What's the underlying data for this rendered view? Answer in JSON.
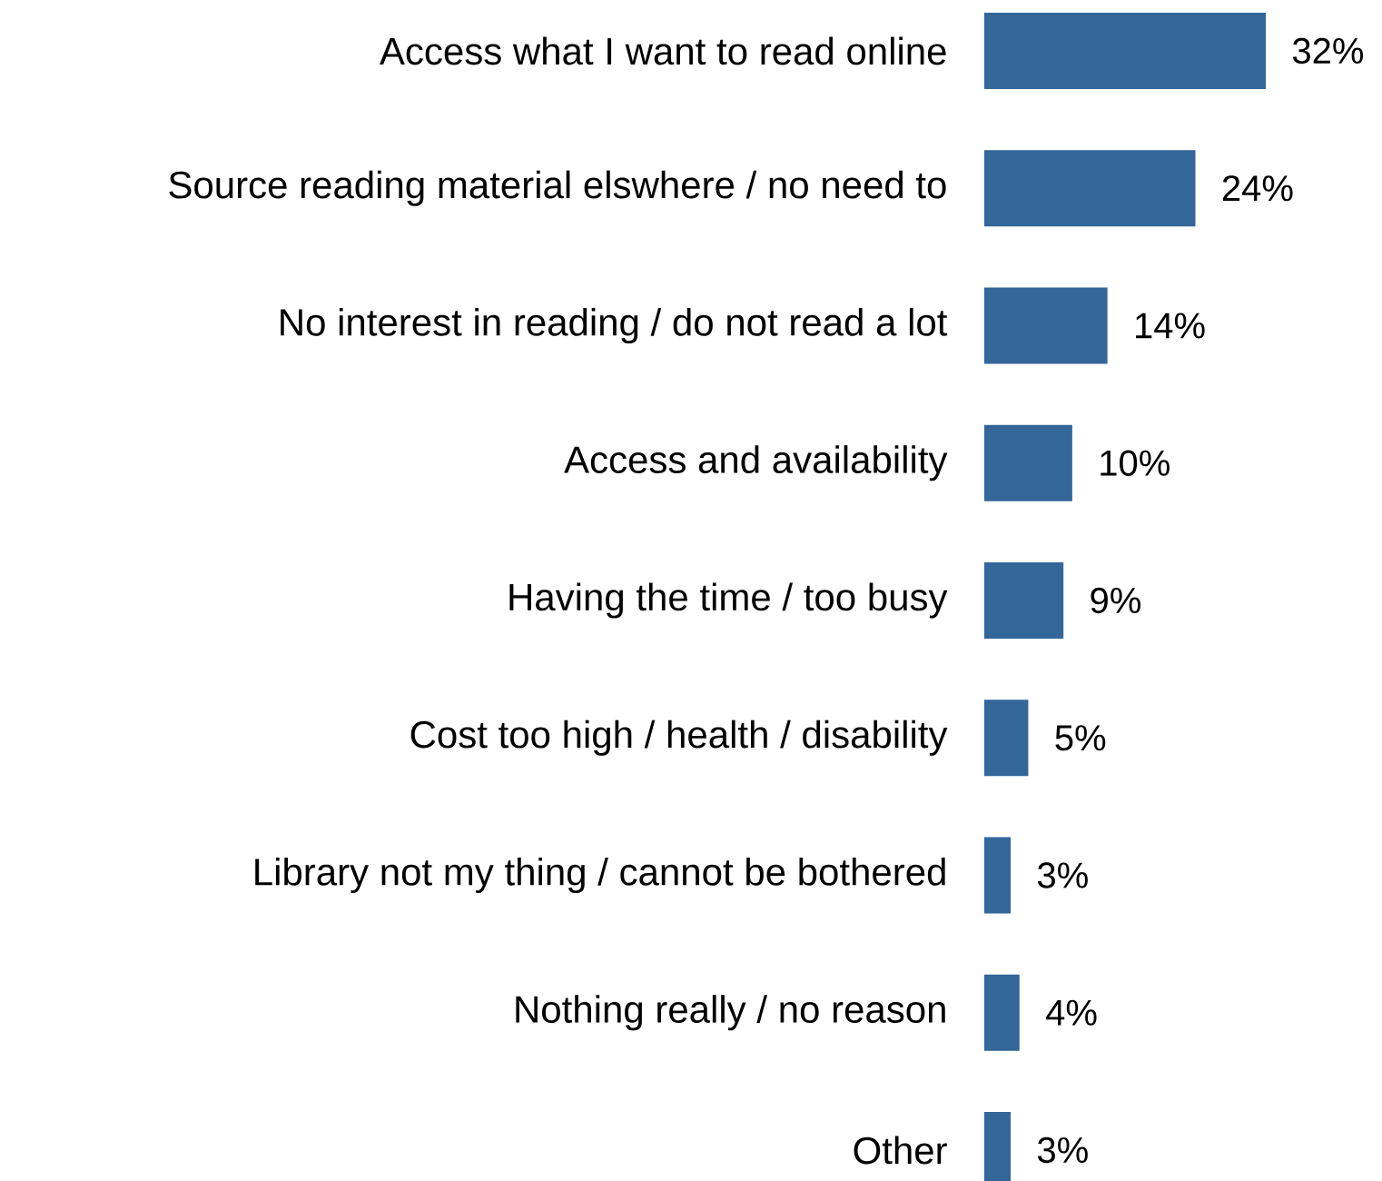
{
  "chart_data": {
    "type": "bar",
    "orientation": "horizontal",
    "categories": [
      "Access what I want to read online",
      "Source reading material elswhere / no need to",
      "No interest in reading / do not read a lot",
      "Access and availability",
      "Having the time / too busy",
      "Cost too high / health / disability",
      "Library not my thing / cannot be bothered",
      "Nothing really / no reason",
      "Other"
    ],
    "values": [
      32,
      24,
      14,
      10,
      9,
      5,
      3,
      4,
      3
    ],
    "value_labels": [
      "32%",
      "24%",
      "14%",
      "10%",
      "9%",
      "5%",
      "3%",
      "4%",
      "3%"
    ],
    "color": "#336699"
  }
}
